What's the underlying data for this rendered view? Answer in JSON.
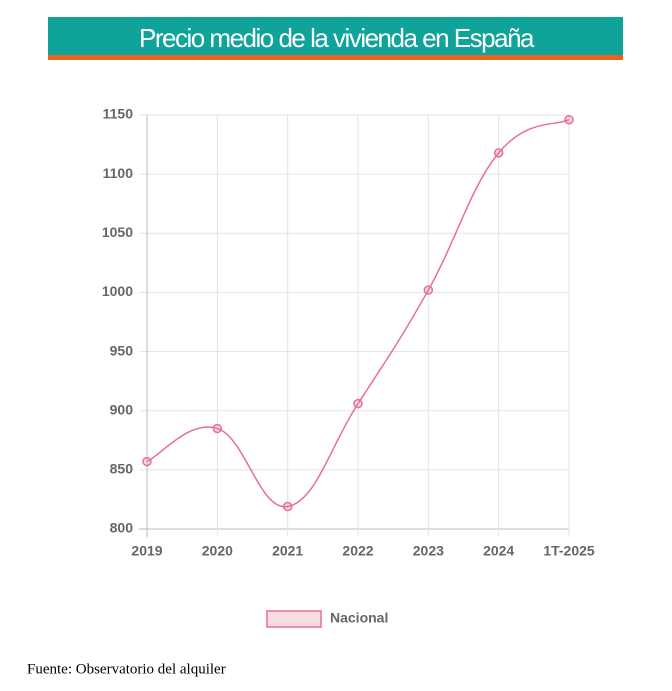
{
  "chart_data": {
    "type": "line",
    "title": "Precio medio de la vivienda en España",
    "categories": [
      "2019",
      "2020",
      "2021",
      "2022",
      "2023",
      "2024",
      "1T-2025"
    ],
    "series": [
      {
        "name": "Nacional",
        "color": "#e8708f",
        "values": [
          857,
          885,
          819,
          906,
          1002,
          1118,
          1146
        ]
      }
    ],
    "ylim": [
      800,
      1150
    ],
    "yticks": [
      800,
      850,
      900,
      950,
      1000,
      1050,
      1100,
      1150
    ],
    "grid": true,
    "legend": "bottom",
    "source": "Fuente: Observatorio del alquiler"
  }
}
